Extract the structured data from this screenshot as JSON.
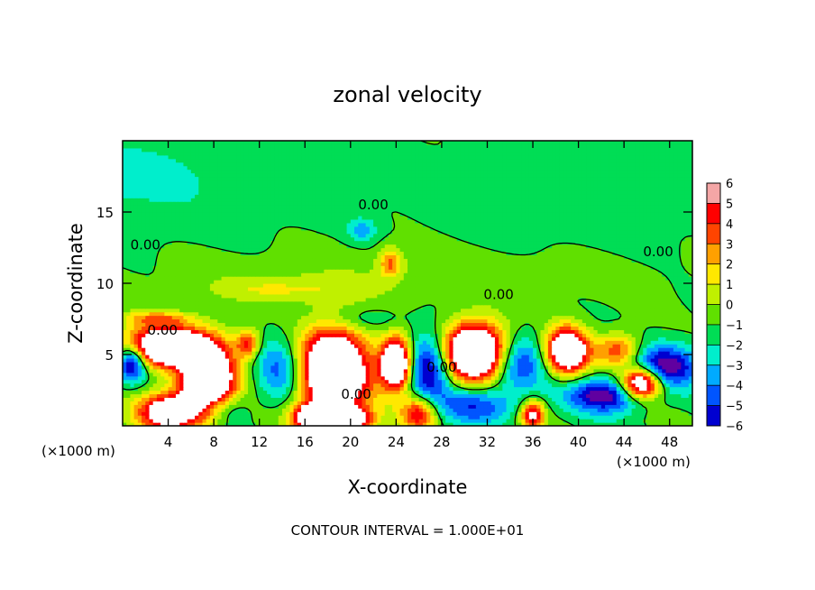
{
  "chart_data": {
    "type": "heatmap",
    "title": "zonal velocity",
    "xlabel": "X-coordinate",
    "ylabel": "Z-coordinate",
    "x_unit_label": "(×1000 m)",
    "x_unit_label_right": "(×1000 m)",
    "xlim": [
      0,
      50
    ],
    "ylim": [
      0,
      20
    ],
    "x_ticks": [
      4,
      8,
      12,
      16,
      20,
      24,
      28,
      32,
      36,
      40,
      44,
      48
    ],
    "x_tick_labels": [
      "4",
      "8",
      "12",
      "16",
      "20",
      "24",
      "28",
      "32",
      "36",
      "40",
      "44",
      "48"
    ],
    "y_ticks": [
      5,
      10,
      15
    ],
    "y_tick_labels": [
      "5",
      "10",
      "15"
    ],
    "footer": "CONTOUR INTERVAL = 1.000E+01",
    "colorbar": {
      "min": -6,
      "max": 6,
      "ticks": [
        "6",
        "5",
        "4",
        "3",
        "2",
        "1",
        "0",
        "−1",
        "−2",
        "−3",
        "−4",
        "−5",
        "−6"
      ],
      "colors": [
        "#f4a6a6",
        "#ff0000",
        "#ff4400",
        "#ffa000",
        "#ffe800",
        "#c0f000",
        "#60e000",
        "#00dd55",
        "#00eecc",
        "#00aaff",
        "#0055ff",
        "#0000d0",
        "#6000a0"
      ]
    },
    "contour_labels": [
      {
        "text": "0.00",
        "x": 22,
        "z": 15.5
      },
      {
        "text": "0.00",
        "x": 2,
        "z": 12.7
      },
      {
        "text": "0.00",
        "x": 47,
        "z": 12.2
      },
      {
        "text": "0.00",
        "x": 33,
        "z": 9.2
      },
      {
        "text": "0.00",
        "x": 3.5,
        "z": 6.7
      },
      {
        "text": "0.00",
        "x": 28,
        "z": 4.1
      },
      {
        "text": "0.00",
        "x": 20.5,
        "z": 2.2
      }
    ],
    "features": [
      {
        "x": 18.5,
        "z": 3.9,
        "rx": 3.2,
        "rz": 3.0,
        "v": 12
      },
      {
        "x": 7.5,
        "z": 3.2,
        "rx": 2.5,
        "rz": 2.5,
        "v": 11
      },
      {
        "x": 3.8,
        "z": 5.6,
        "rx": 3.8,
        "rz": 1.4,
        "v": 11
      },
      {
        "x": 4.0,
        "z": 1.0,
        "rx": 2.6,
        "rz": 1.3,
        "v": 9
      },
      {
        "x": 16.5,
        "z": 0.6,
        "rx": 1.6,
        "rz": 1.0,
        "v": 8
      },
      {
        "x": 19.5,
        "z": 0.4,
        "rx": 2.2,
        "rz": 0.9,
        "v": 10
      },
      {
        "x": 11.0,
        "z": 5.8,
        "rx": 1.0,
        "rz": 1.0,
        "v": 5
      },
      {
        "x": 24.0,
        "z": 4.4,
        "rx": 1.3,
        "rz": 1.7,
        "v": 12
      },
      {
        "x": 31.0,
        "z": 5.2,
        "rx": 2.9,
        "rz": 2.0,
        "v": 13
      },
      {
        "x": 36.0,
        "z": 0.8,
        "rx": 1.0,
        "rz": 1.0,
        "v": 7
      },
      {
        "x": 39.0,
        "z": 5.3,
        "rx": 1.8,
        "rz": 1.6,
        "v": 11
      },
      {
        "x": 43.5,
        "z": 5.3,
        "rx": 2.0,
        "rz": 1.2,
        "v": 5
      },
      {
        "x": 45.5,
        "z": 3.0,
        "rx": 1.8,
        "rz": 1.1,
        "v": 11
      },
      {
        "x": 26.0,
        "z": 0.9,
        "rx": 1.6,
        "rz": 1.2,
        "v": 6
      },
      {
        "x": 23.5,
        "z": 11.5,
        "rx": 1.0,
        "rz": 1.0,
        "v": 4
      },
      {
        "x": 27.0,
        "z": 4.3,
        "rx": 1.9,
        "rz": 2.3,
        "v": -6
      },
      {
        "x": 34.5,
        "z": 4.5,
        "rx": 2.5,
        "rz": 2.0,
        "v": -5
      },
      {
        "x": 14.0,
        "z": 4.0,
        "rx": 2.2,
        "rz": 2.3,
        "v": -4
      },
      {
        "x": 9.0,
        "z": 1.3,
        "rx": 2.0,
        "rz": 1.2,
        "v": -3
      },
      {
        "x": 31.0,
        "z": 1.5,
        "rx": 3.5,
        "rz": 1.3,
        "v": -4
      },
      {
        "x": 42.5,
        "z": 2.2,
        "rx": 3.5,
        "rz": 1.2,
        "v": -6
      },
      {
        "x": 47.5,
        "z": 4.2,
        "rx": 3.0,
        "rz": 1.5,
        "v": -6
      },
      {
        "x": 0.8,
        "z": 4.5,
        "rx": 1.2,
        "rz": 1.3,
        "v": -7
      },
      {
        "x": 21.0,
        "z": 13.8,
        "rx": 1.2,
        "rz": 0.8,
        "v": -2.5
      },
      {
        "x": 0.0,
        "z": 17.5,
        "rx": 14,
        "rz": 3.5,
        "v": -1.3
      },
      {
        "x": 40.0,
        "z": 16.0,
        "rx": 12,
        "rz": 3.5,
        "v": -0.6
      },
      {
        "x": 25.0,
        "z": 10.5,
        "rx": 20,
        "rz": 1.8,
        "v": 0.8
      },
      {
        "x": 14.0,
        "z": 9.6,
        "rx": 6,
        "rz": 0.9,
        "v": 1.8
      },
      {
        "x": 21.0,
        "z": 7.5,
        "rx": 3.5,
        "rz": 0.8,
        "v": -1.5
      },
      {
        "x": 3.0,
        "z": 7.6,
        "rx": 3.0,
        "rz": 0.5,
        "v": 3
      }
    ]
  }
}
